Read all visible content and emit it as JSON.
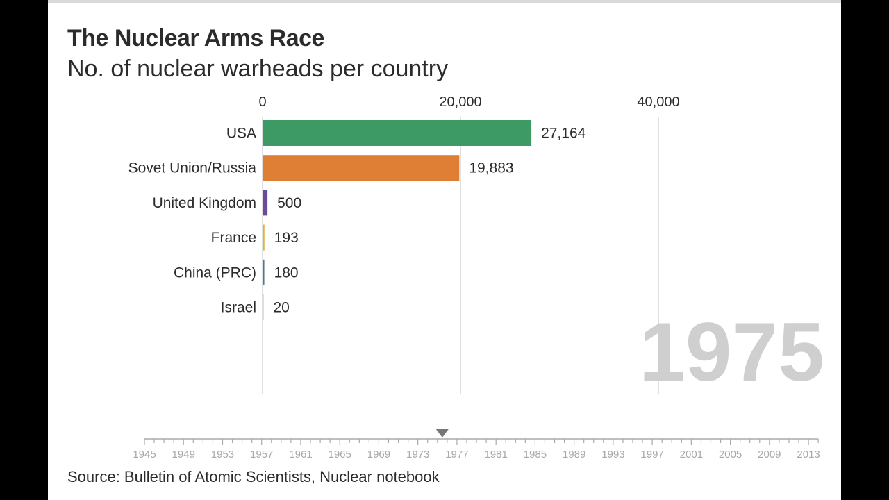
{
  "chart_data": {
    "type": "bar",
    "title": "The Nuclear Arms Race",
    "subtitle": "No. of nuclear warheads per country",
    "source": "Source: Bulletin of Atomic Scientists, Nuclear notebook",
    "year": "1975",
    "categories": [
      "USA",
      "Sovet Union/Russia",
      "United Kingdom",
      "France",
      "China (PRC)",
      "Israel"
    ],
    "values": [
      27164,
      19883,
      500,
      193,
      180,
      20
    ],
    "value_labels": [
      "27,164",
      "19,883",
      "500",
      "193",
      "180",
      "20"
    ],
    "colors": [
      "#3e9a65",
      "#df7f36",
      "#6b4c9a",
      "#e2b33a",
      "#4e7a9a",
      "#bbbbbb"
    ],
    "xlim": [
      0,
      57000
    ],
    "x_ticks": [
      {
        "value": 0,
        "label": "0"
      },
      {
        "value": 20000,
        "label": "20,000"
      },
      {
        "value": 40000,
        "label": "40,000"
      }
    ],
    "grid": true,
    "timeline": {
      "start": 1945,
      "end": 2014,
      "current": 1975,
      "labels": [
        "1945",
        "1949",
        "1953",
        "1957",
        "1961",
        "1965",
        "1969",
        "1973",
        "1977",
        "1981",
        "1985",
        "1989",
        "1993",
        "1997",
        "2001",
        "2005",
        "2009",
        "2013"
      ]
    }
  }
}
